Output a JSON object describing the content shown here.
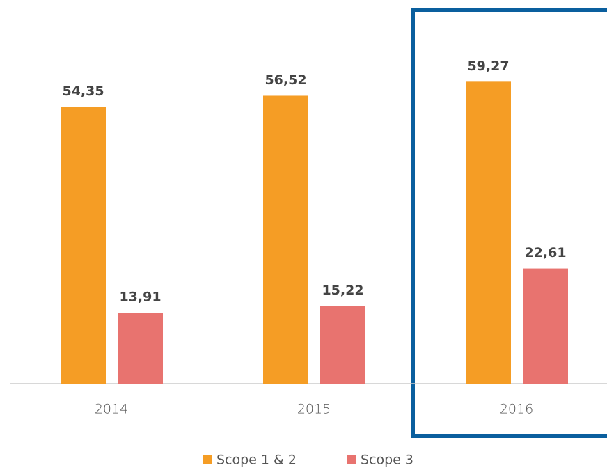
{
  "chart_data": {
    "type": "bar",
    "categories": [
      "2014",
      "2015",
      "2016"
    ],
    "series": [
      {
        "name": "Scope 1 & 2",
        "color": "#f59d25",
        "values": [
          54.35,
          56.52,
          59.27
        ],
        "value_labels": [
          "54,35",
          "56,52",
          "59,27"
        ]
      },
      {
        "name": "Scope 3",
        "color": "#e8736f",
        "values": [
          13.91,
          15.22,
          22.61
        ],
        "value_labels": [
          "13,91",
          "15,22",
          "22,61"
        ]
      }
    ],
    "ylim": [
      0,
      60
    ],
    "legend": "bottom"
  }
}
